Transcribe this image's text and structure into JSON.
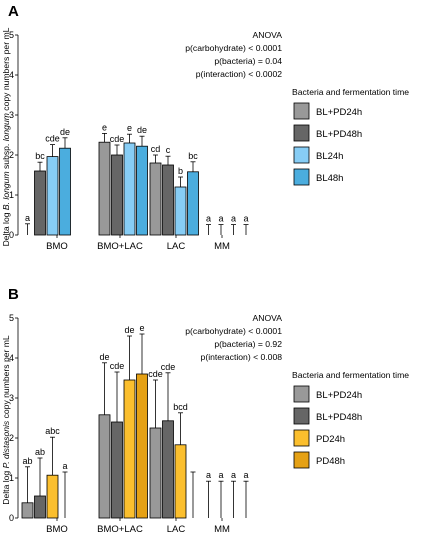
{
  "chart_data": [
    {
      "panel_label": "A",
      "type": "bar",
      "categories": [
        "BMO",
        "BMO+LAC",
        "LAC",
        "MM"
      ],
      "ylabel_parts": [
        "Delta log ",
        "B. longum",
        " subsp. ",
        "longum",
        " copy numbers per mL"
      ],
      "ylim": [
        0,
        5
      ],
      "yticks": [
        "0",
        "1",
        "2",
        "3",
        "4",
        "5"
      ],
      "annotations": [
        "ANOVA",
        "p(carbohydrate) < 0.0001",
        "p(bacteria) = 0.04",
        "p(interaction) < 0.0002"
      ],
      "legend_title": "Bacteria and fermentation time",
      "legend_placement": "right",
      "series": [
        {
          "name": "BL+PD24h",
          "color": "#999999",
          "values": [
            0.0,
            2.32,
            1.8,
            0.0
          ],
          "errors": [
            0.28,
            0.22,
            0.2,
            0.26
          ],
          "sig_labels": [
            "a",
            "e",
            "cd",
            "a"
          ]
        },
        {
          "name": "BL+PD48h",
          "color": "#666666",
          "values": [
            1.6,
            2.0,
            1.75,
            0.0
          ],
          "errors": [
            0.22,
            0.25,
            0.22,
            0.26
          ],
          "sig_labels": [
            "bc",
            "cde",
            "c",
            "a"
          ]
        },
        {
          "name": "BL24h",
          "color": "#87cdf5",
          "values": [
            1.96,
            2.3,
            1.2,
            0.0
          ],
          "errors": [
            0.3,
            0.22,
            0.25,
            0.26
          ],
          "sig_labels": [
            "cde",
            "e",
            "b",
            "a"
          ]
        },
        {
          "name": "BL48h",
          "color": "#4badde",
          "values": [
            2.17,
            2.22,
            1.58,
            0.0
          ],
          "errors": [
            0.26,
            0.25,
            0.25,
            0.26
          ],
          "sig_labels": [
            "de",
            "de",
            "bc",
            "a"
          ]
        }
      ]
    },
    {
      "panel_label": "B",
      "type": "bar",
      "categories": [
        "BMO",
        "BMO+LAC",
        "LAC",
        "MM"
      ],
      "ylabel_parts": [
        "Delta log ",
        "P. distasonis",
        " copy numbers per mL"
      ],
      "ylim": [
        0,
        5
      ],
      "yticks": [
        "0",
        "1",
        "2",
        "3",
        "4",
        "5"
      ],
      "annotations": [
        "ANOVA",
        "p(carbohydrate) < 0.0001",
        "p(bacteria) = 0.92",
        "p(interaction) < 0.008"
      ],
      "legend_title": "Bacteria and fermentation time",
      "legend_placement": "right",
      "series": [
        {
          "name": "BL+PD24h",
          "color": "#999999",
          "values": [
            0.38,
            2.58,
            2.25,
            0.0
          ],
          "errors": [
            0.9,
            1.3,
            1.2,
            0.92
          ],
          "sig_labels": [
            "ab",
            "de",
            "cde",
            "a"
          ]
        },
        {
          "name": "BL+PD48h",
          "color": "#666666",
          "values": [
            0.55,
            2.4,
            2.43,
            0.0
          ],
          "errors": [
            0.95,
            1.25,
            1.2,
            0.92
          ],
          "sig_labels": [
            "ab",
            "cde",
            "cde",
            "a"
          ]
        },
        {
          "name": "PD24h",
          "color": "#fbbf2e",
          "values": [
            1.07,
            3.45,
            1.83,
            0.0
          ],
          "errors": [
            0.95,
            1.1,
            0.8,
            0.92
          ],
          "sig_labels": [
            "abc",
            "de",
            "bcd",
            "a"
          ]
        },
        {
          "name": "PD48h",
          "color": "#e5a115",
          "values": [
            0.0,
            3.6,
            0.0,
            0.0
          ],
          "errors": [
            1.15,
            1.0,
            1.15,
            0.92
          ],
          "sig_labels": [
            "a",
            "e",
            "",
            "a"
          ]
        }
      ]
    }
  ]
}
